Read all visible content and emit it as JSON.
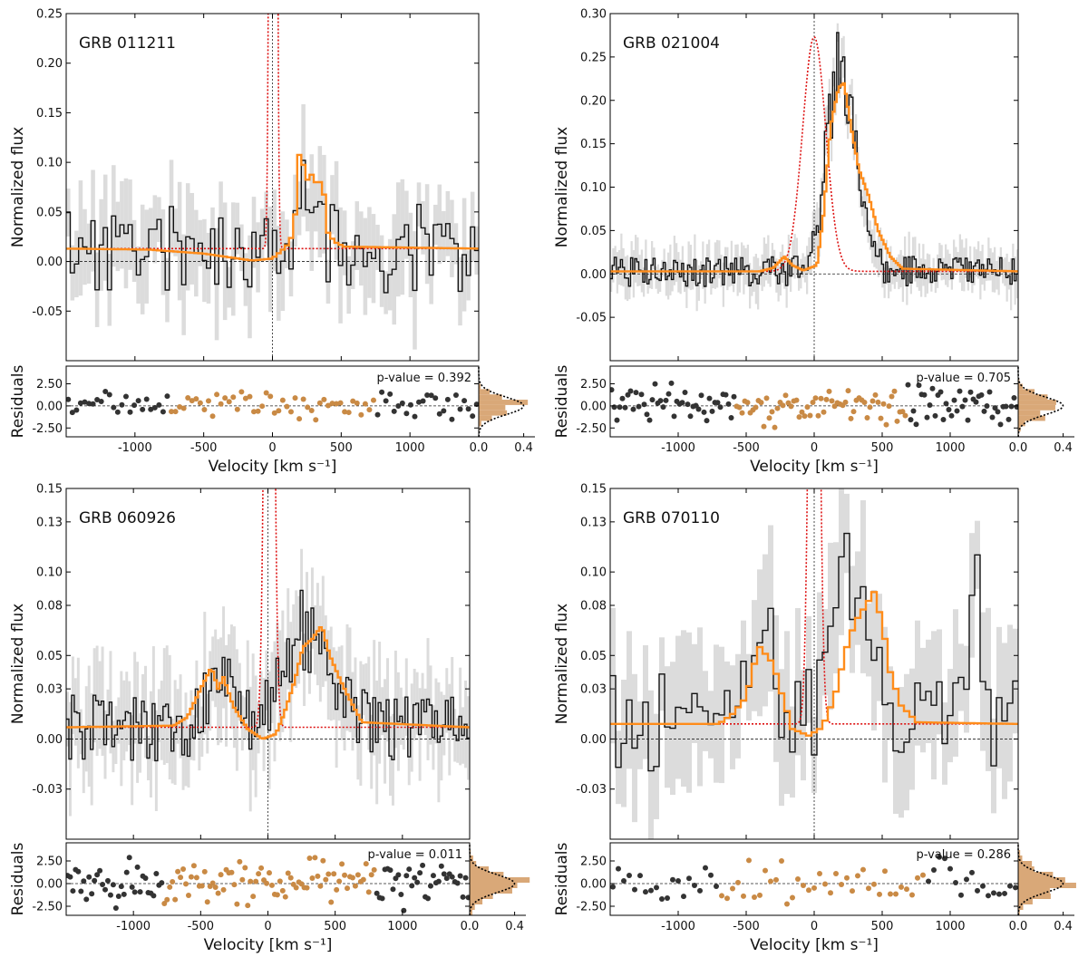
{
  "figure": {
    "ylabel_main": "Normalized flux",
    "ylabel_resid": "Residuals",
    "xlabel": "Velocity [km s⁻¹]",
    "colors": {
      "data": "#111111",
      "error": "#dcdcdc",
      "model": "#ff8c1a",
      "intrinsic": "#dd1111",
      "resid_in": "#c98a45",
      "resid_out": "#333333",
      "hist": "#d9a878"
    }
  },
  "chart_data": [
    {
      "type": "line",
      "title": "GRB 011211",
      "xlabel": "Velocity [km s⁻¹]",
      "ylabel": "Normalized flux",
      "xlim": [
        -1500,
        1500
      ],
      "ylim": [
        -0.1,
        0.25
      ],
      "yticks": [
        0.25,
        0.2,
        0.15,
        0.1,
        0.05,
        0.0,
        -0.05
      ],
      "ytick_labels": [
        "0.25",
        "0.20",
        "0.15",
        "0.10",
        "0.05",
        "0.00",
        "-0.05"
      ],
      "xticks": [
        -1000,
        -500,
        0,
        500,
        1000
      ],
      "xtick_labels": [
        "-1000",
        "-500",
        "0",
        "500",
        "1000"
      ],
      "continuum": 0.013,
      "data_bin_width": 30,
      "seed": 11,
      "data_amplitude": 0.045,
      "err_amplitude": 0.04,
      "window": [
        -760,
        760
      ],
      "model_segments": [
        {
          "v": -1500,
          "f": 0.013
        },
        {
          "v": -900,
          "f": 0.012
        },
        {
          "v": -500,
          "f": 0.008
        },
        {
          "v": -300,
          "f": 0.004
        },
        {
          "v": -150,
          "f": 0.001
        },
        {
          "v": 0,
          "f": 0.003
        },
        {
          "v": 100,
          "f": 0.015
        },
        {
          "v": 160,
          "f": 0.03
        },
        {
          "v": 180,
          "f": 0.1
        },
        {
          "v": 210,
          "f": 0.115
        },
        {
          "v": 240,
          "f": 0.08
        },
        {
          "v": 270,
          "f": 0.085
        },
        {
          "v": 300,
          "f": 0.09
        },
        {
          "v": 330,
          "f": 0.07
        },
        {
          "v": 360,
          "f": 0.09
        },
        {
          "v": 400,
          "f": 0.03
        },
        {
          "v": 450,
          "f": 0.02
        },
        {
          "v": 520,
          "f": 0.015
        },
        {
          "v": 1500,
          "f": 0.013
        }
      ],
      "intrinsic": {
        "center": 5,
        "sigma": 16,
        "peak": 3.0
      },
      "emission_features": [
        {
          "center": 260,
          "sigma": 70,
          "amp": 0.08
        }
      ],
      "residuals": {
        "p_value": "p-value = 0.392",
        "ylim": [
          -3.5,
          4.5
        ],
        "yticks": [
          2.5,
          0.0,
          -2.5
        ],
        "ytick_labels": [
          "2.50",
          "0.00",
          "-2.50"
        ],
        "hist_xticks": [
          0.0,
          0.4
        ],
        "hist_xtick_labels": [
          "0.0",
          "0.4"
        ],
        "spread": 0.9
      }
    },
    {
      "type": "line",
      "title": "GRB 021004",
      "xlabel": "Velocity [km s⁻¹]",
      "ylabel": "Normalized flux",
      "xlim": [
        -1500,
        1500
      ],
      "ylim": [
        -0.1,
        0.3
      ],
      "yticks": [
        0.3,
        0.25,
        0.2,
        0.15,
        0.1,
        0.05,
        0.0,
        -0.05
      ],
      "ytick_labels": [
        "0.30",
        "0.25",
        "0.20",
        "0.15",
        "0.10",
        "0.05",
        "0.00",
        "-0.05"
      ],
      "xticks": [
        -1000,
        -500,
        0,
        500,
        1000
      ],
      "xtick_labels": [
        "-1000",
        "-500",
        "0",
        "500",
        "1000"
      ],
      "continuum": 0.003,
      "data_bin_width": 15,
      "seed": 21,
      "data_amplitude": 0.018,
      "err_amplitude": 0.02,
      "window": [
        -580,
        680
      ],
      "model_segments": [
        {
          "v": -1500,
          "f": 0.003
        },
        {
          "v": -400,
          "f": 0.003
        },
        {
          "v": -300,
          "f": 0.007
        },
        {
          "v": -220,
          "f": 0.02
        },
        {
          "v": -160,
          "f": 0.01
        },
        {
          "v": -80,
          "f": 0.004
        },
        {
          "v": 20,
          "f": 0.01
        },
        {
          "v": 70,
          "f": 0.07
        },
        {
          "v": 120,
          "f": 0.17
        },
        {
          "v": 180,
          "f": 0.215
        },
        {
          "v": 220,
          "f": 0.22
        },
        {
          "v": 270,
          "f": 0.17
        },
        {
          "v": 330,
          "f": 0.12
        },
        {
          "v": 400,
          "f": 0.09
        },
        {
          "v": 470,
          "f": 0.05
        },
        {
          "v": 560,
          "f": 0.02
        },
        {
          "v": 650,
          "f": 0.006
        },
        {
          "v": 1500,
          "f": 0.003
        }
      ],
      "intrinsic": {
        "center": 0,
        "sigma": 85,
        "peak": 0.27
      },
      "emission_features": [
        {
          "center": 200,
          "sigma": 110,
          "amp": 0.22
        }
      ],
      "residuals": {
        "p_value": "p-value = 0.705",
        "ylim": [
          -3.5,
          4.5
        ],
        "yticks": [
          2.5,
          0.0,
          -2.5
        ],
        "ytick_labels": [
          "2.50",
          "0.00",
          "-2.50"
        ],
        "hist_xticks": [
          0.0,
          0.4
        ],
        "hist_xtick_labels": [
          "0.0",
          "0.4"
        ],
        "spread": 1.1
      }
    },
    {
      "type": "line",
      "title": "GRB 060926",
      "xlabel": "Velocity [km s⁻¹]",
      "ylabel": "Normalized flux",
      "xlim": [
        -1500,
        1500
      ],
      "ylim": [
        -0.06,
        0.15
      ],
      "yticks": [
        0.15,
        0.13,
        0.1,
        0.08,
        0.05,
        0.03,
        0.0,
        -0.03
      ],
      "ytick_labels": [
        "0.15",
        "0.13",
        "0.10",
        "0.08",
        "0.05",
        "0.03",
        "0.00",
        "-0.03"
      ],
      "xticks": [
        -1000,
        -500,
        0,
        500,
        1000
      ],
      "xtick_labels": [
        "-1000",
        "-500",
        "0",
        "500",
        "1000"
      ],
      "continuum": 0.007,
      "data_bin_width": 20,
      "seed": 31,
      "data_amplitude": 0.02,
      "err_amplitude": 0.025,
      "window": [
        -780,
        800
      ],
      "model_segments": [
        {
          "v": -1500,
          "f": 0.007
        },
        {
          "v": -700,
          "f": 0.008
        },
        {
          "v": -600,
          "f": 0.013
        },
        {
          "v": -500,
          "f": 0.03
        },
        {
          "v": -420,
          "f": 0.043
        },
        {
          "v": -370,
          "f": 0.03
        },
        {
          "v": -330,
          "f": 0.037
        },
        {
          "v": -260,
          "f": 0.02
        },
        {
          "v": -150,
          "f": 0.006
        },
        {
          "v": -40,
          "f": 0.0
        },
        {
          "v": 60,
          "f": 0.003
        },
        {
          "v": 120,
          "f": 0.015
        },
        {
          "v": 200,
          "f": 0.035
        },
        {
          "v": 260,
          "f": 0.055
        },
        {
          "v": 330,
          "f": 0.06
        },
        {
          "v": 400,
          "f": 0.068
        },
        {
          "v": 460,
          "f": 0.05
        },
        {
          "v": 540,
          "f": 0.035
        },
        {
          "v": 600,
          "f": 0.025
        },
        {
          "v": 700,
          "f": 0.01
        },
        {
          "v": 1500,
          "f": 0.007
        }
      ],
      "intrinsic": {
        "center": 10,
        "sigma": 28,
        "peak": 0.6
      },
      "emission_features": [
        {
          "center": -350,
          "sigma": 100,
          "amp": 0.028
        },
        {
          "center": 300,
          "sigma": 160,
          "amp": 0.06
        }
      ],
      "residuals": {
        "p_value": "p-value = 0.011",
        "ylim": [
          -3.5,
          4.5
        ],
        "yticks": [
          2.5,
          0.0,
          -2.5
        ],
        "ytick_labels": [
          "2.50",
          "0.00",
          "-2.50"
        ],
        "hist_xticks": [
          0.0,
          0.4
        ],
        "hist_xtick_labels": [
          "0.0",
          "0.4"
        ],
        "spread": 1.3
      }
    },
    {
      "type": "line",
      "title": "GRB 070110",
      "xlabel": "Velocity [km s⁻¹]",
      "ylabel": "Normalized flux",
      "xlim": [
        -1500,
        1500
      ],
      "ylim": [
        -0.06,
        0.15
      ],
      "yticks": [
        0.15,
        0.13,
        0.1,
        0.08,
        0.05,
        0.03,
        0.0,
        -0.03
      ],
      "ytick_labels": [
        "0.15",
        "0.13",
        "0.10",
        "0.08",
        "0.05",
        "0.03",
        "0.00",
        "-0.03"
      ],
      "xticks": [
        -1000,
        -500,
        0,
        500,
        1000
      ],
      "xtick_labels": [
        "-1000",
        "-500",
        "0",
        "500",
        "1000"
      ],
      "continuum": 0.009,
      "data_bin_width": 40,
      "seed": 41,
      "data_amplitude": 0.03,
      "err_amplitude": 0.035,
      "window": [
        -700,
        830
      ],
      "model_segments": [
        {
          "v": -1500,
          "f": 0.009
        },
        {
          "v": -700,
          "f": 0.009
        },
        {
          "v": -600,
          "f": 0.015
        },
        {
          "v": -500,
          "f": 0.025
        },
        {
          "v": -440,
          "f": 0.045
        },
        {
          "v": -400,
          "f": 0.055
        },
        {
          "v": -350,
          "f": 0.05
        },
        {
          "v": -300,
          "f": 0.045
        },
        {
          "v": -250,
          "f": 0.03
        },
        {
          "v": -160,
          "f": 0.006
        },
        {
          "v": -40,
          "f": 0.002
        },
        {
          "v": 60,
          "f": 0.007
        },
        {
          "v": 150,
          "f": 0.025
        },
        {
          "v": 240,
          "f": 0.055
        },
        {
          "v": 300,
          "f": 0.07
        },
        {
          "v": 380,
          "f": 0.08
        },
        {
          "v": 440,
          "f": 0.088
        },
        {
          "v": 500,
          "f": 0.07
        },
        {
          "v": 560,
          "f": 0.04
        },
        {
          "v": 640,
          "f": 0.02
        },
        {
          "v": 760,
          "f": 0.01
        },
        {
          "v": 1500,
          "f": 0.009
        }
      ],
      "intrinsic": {
        "center": 0,
        "sigma": 32,
        "peak": 0.5
      },
      "emission_features": [
        {
          "center": -380,
          "sigma": 90,
          "amp": 0.045
        },
        {
          "center": 300,
          "sigma": 150,
          "amp": 0.08
        },
        {
          "center": 1200,
          "sigma": 40,
          "amp": 0.08
        }
      ],
      "residuals": {
        "p_value": "p-value = 0.286",
        "ylim": [
          -3.5,
          4.5
        ],
        "yticks": [
          2.5,
          0.0,
          -2.5
        ],
        "ytick_labels": [
          "2.50",
          "0.00",
          "-2.50"
        ],
        "hist_xticks": [
          0.0,
          0.4
        ],
        "hist_xtick_labels": [
          "0.0",
          "0.4"
        ],
        "spread": 1.3
      }
    }
  ]
}
